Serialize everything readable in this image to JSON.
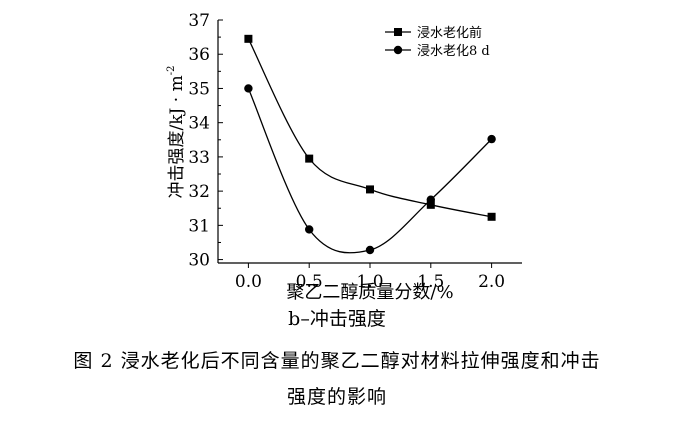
{
  "chart_data": {
    "type": "line",
    "title": "",
    "xlabel": "聚乙二醇质量分数/%",
    "ylabel": "冲击强度/kJ · m",
    "ylabel_superscript": "-2",
    "x": [
      0.0,
      0.5,
      1.0,
      1.5,
      2.0
    ],
    "x_tick_labels": [
      "0.0",
      "0.5",
      "1.0",
      "1.5",
      "2.0"
    ],
    "y_ticks": [
      30,
      31,
      32,
      33,
      34,
      35,
      36,
      37
    ],
    "y_tick_labels": [
      "30",
      "31",
      "32",
      "33",
      "34",
      "35",
      "36",
      "37"
    ],
    "xlim": [
      -0.25,
      2.25
    ],
    "ylim": [
      29.9,
      37
    ],
    "grid": false,
    "legend_position": "top-right",
    "series": [
      {
        "name": "浸水老化前",
        "marker": "square",
        "color": "#000000",
        "values": [
          36.45,
          32.95,
          32.05,
          31.6,
          31.25
        ]
      },
      {
        "name": "浸水老化8 d",
        "marker": "circle",
        "color": "#000000",
        "values": [
          35.0,
          30.88,
          30.28,
          31.75,
          33.52
        ]
      }
    ]
  },
  "captions": {
    "subcaption": "b–冲击强度",
    "figure_line1": "图 2   浸水老化后不同含量的聚乙二醇对材料拉伸强度和冲击",
    "figure_line2": "强度的影响"
  }
}
